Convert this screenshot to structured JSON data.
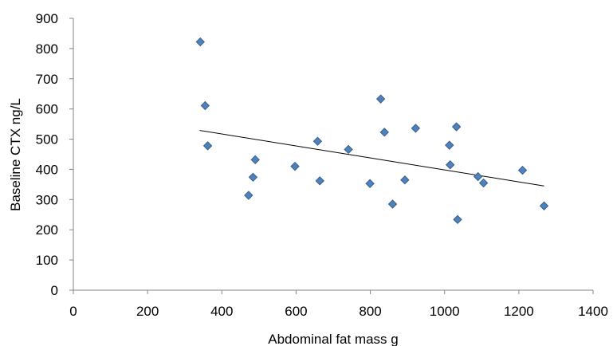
{
  "chart_data": {
    "type": "scatter",
    "title": "",
    "xlabel": "Abdominal fat mass g",
    "ylabel": "Baseline CTX ng/L",
    "xlim": [
      0,
      1400
    ],
    "ylim": [
      0,
      900
    ],
    "xticks": [
      "0",
      "200",
      "400",
      "600",
      "800",
      "1000",
      "1200",
      "1400"
    ],
    "yticks": [
      "0",
      "100",
      "200",
      "300",
      "400",
      "500",
      "600",
      "700",
      "800",
      "900"
    ],
    "xtick_values": [
      0,
      200,
      400,
      600,
      800,
      1000,
      1200,
      1400
    ],
    "ytick_values": [
      0,
      100,
      200,
      300,
      400,
      500,
      600,
      700,
      800,
      900
    ],
    "grid": false,
    "legend": "none",
    "marker": "diamond",
    "marker_color": "#4f81bd",
    "series": [
      {
        "points": [
          {
            "x": 342,
            "y": 822
          },
          {
            "x": 355,
            "y": 611
          },
          {
            "x": 362,
            "y": 478
          },
          {
            "x": 472,
            "y": 314
          },
          {
            "x": 484,
            "y": 374
          },
          {
            "x": 490,
            "y": 432
          },
          {
            "x": 597,
            "y": 410
          },
          {
            "x": 658,
            "y": 493
          },
          {
            "x": 664,
            "y": 362
          },
          {
            "x": 741,
            "y": 466
          },
          {
            "x": 799,
            "y": 353
          },
          {
            "x": 828,
            "y": 633
          },
          {
            "x": 838,
            "y": 523
          },
          {
            "x": 860,
            "y": 285
          },
          {
            "x": 893,
            "y": 365
          },
          {
            "x": 922,
            "y": 536
          },
          {
            "x": 1013,
            "y": 480
          },
          {
            "x": 1015,
            "y": 415
          },
          {
            "x": 1032,
            "y": 541
          },
          {
            "x": 1035,
            "y": 234
          },
          {
            "x": 1090,
            "y": 376
          },
          {
            "x": 1105,
            "y": 355
          },
          {
            "x": 1210,
            "y": 397
          },
          {
            "x": 1268,
            "y": 279
          }
        ]
      }
    ],
    "trendline": {
      "type": "linear",
      "x": [
        340,
        1268
      ],
      "y": [
        529,
        345
      ]
    }
  }
}
